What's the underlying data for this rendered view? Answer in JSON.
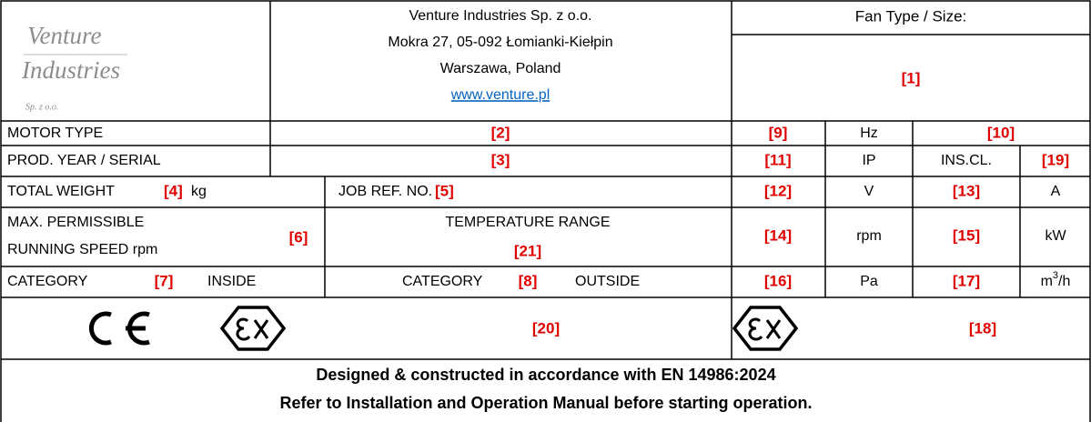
{
  "header": {
    "logo": {
      "line1": "Venture",
      "line2": "Industries",
      "line3": "Sp. z o.o."
    },
    "company": "Venture Industries Sp. z o.o.",
    "address": "Mokra 27, 05-092 Łomianki-Kiełpin",
    "city": "Warszawa, Poland",
    "website": "www.venture.pl",
    "fan_type_label": "Fan Type / Size:",
    "fan_type_value": "[1]"
  },
  "motor_type": {
    "label": "MOTOR TYPE",
    "value": "[2]"
  },
  "prod_year": {
    "label": "PROD. YEAR / SERIAL",
    "value": "[3]"
  },
  "total_weight": {
    "label": "TOTAL WEIGHT",
    "value": "[4]",
    "unit": "kg"
  },
  "job_ref": {
    "label": "JOB REF. NO.",
    "value": "[5]"
  },
  "max_speed": {
    "label_line1": "MAX. PERMISSIBLE",
    "label_line2": "RUNNING SPEED rpm",
    "value": "[6]"
  },
  "temperature": {
    "label": "TEMPERATURE RANGE",
    "value": "[21]"
  },
  "category_inside": {
    "label": "CATEGORY",
    "value": "[7]",
    "suffix": "INSIDE"
  },
  "category_outside": {
    "label": "CATEGORY",
    "value": "[8]",
    "suffix": "OUTSIDE"
  },
  "ratings": {
    "frequency": {
      "value": "[9]",
      "unit": "Hz"
    },
    "field10": "[10]",
    "ip": {
      "value": "[11]",
      "unit": "IP"
    },
    "ins_class": {
      "label": "INS.CL.",
      "value": "[19]"
    },
    "voltage": {
      "value": "[12]",
      "unit": "V"
    },
    "current": {
      "value": "[13]",
      "unit": "A"
    },
    "speed": {
      "value": "[14]",
      "unit": "rpm"
    },
    "power": {
      "value": "[15]",
      "unit": "kW"
    },
    "pressure": {
      "value": "[16]",
      "unit": "Pa"
    },
    "flow": {
      "value": "[17]",
      "unit_base": "m",
      "unit_exp": "3",
      "unit_tail": "/h"
    }
  },
  "marks": {
    "left_value": "[20]",
    "right_value": "[18]"
  },
  "footer": {
    "line1": "Designed & constructed in accordance with EN 14986:2024",
    "line2": "Refer to Installation and Operation Manual before starting operation."
  }
}
